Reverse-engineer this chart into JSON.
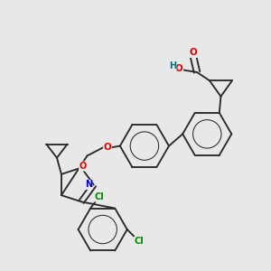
{
  "background_color": "#e8e8e8",
  "bond_color": "#2a2a2a",
  "atom_colors": {
    "O": "#dd0000",
    "N": "#0000cc",
    "Cl": "#008800",
    "H": "#007777",
    "C": "#2a2a2a"
  },
  "figsize": [
    3.0,
    3.0
  ],
  "dpi": 100,
  "lw": 1.35,
  "fs": 7.2
}
